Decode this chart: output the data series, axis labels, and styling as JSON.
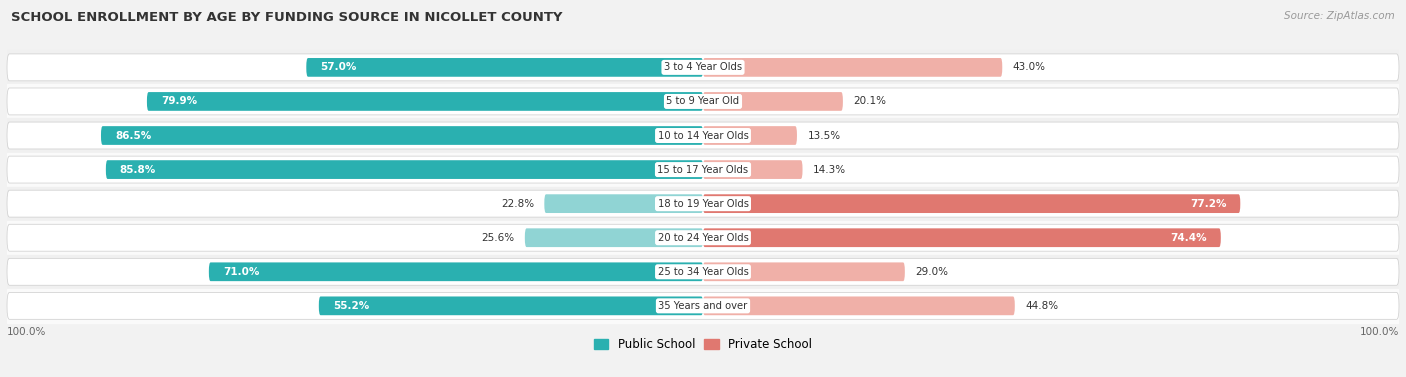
{
  "title": "SCHOOL ENROLLMENT BY AGE BY FUNDING SOURCE IN NICOLLET COUNTY",
  "source": "Source: ZipAtlas.com",
  "categories": [
    "3 to 4 Year Olds",
    "5 to 9 Year Old",
    "10 to 14 Year Olds",
    "15 to 17 Year Olds",
    "18 to 19 Year Olds",
    "20 to 24 Year Olds",
    "25 to 34 Year Olds",
    "35 Years and over"
  ],
  "public_pct": [
    57.0,
    79.9,
    86.5,
    85.8,
    22.8,
    25.6,
    71.0,
    55.2
  ],
  "private_pct": [
    43.0,
    20.1,
    13.5,
    14.3,
    77.2,
    74.4,
    29.0,
    44.8
  ],
  "public_color_dark": "#2ab0b0",
  "public_color_light": "#90d4d4",
  "private_color_dark": "#e07870",
  "private_color_light": "#f0b0a8",
  "row_bg_odd": "#f0f0f0",
  "row_bg_even": "#fafafa",
  "bg_color": "#f2f2f2",
  "legend_public": "Public School",
  "legend_private": "Private School"
}
